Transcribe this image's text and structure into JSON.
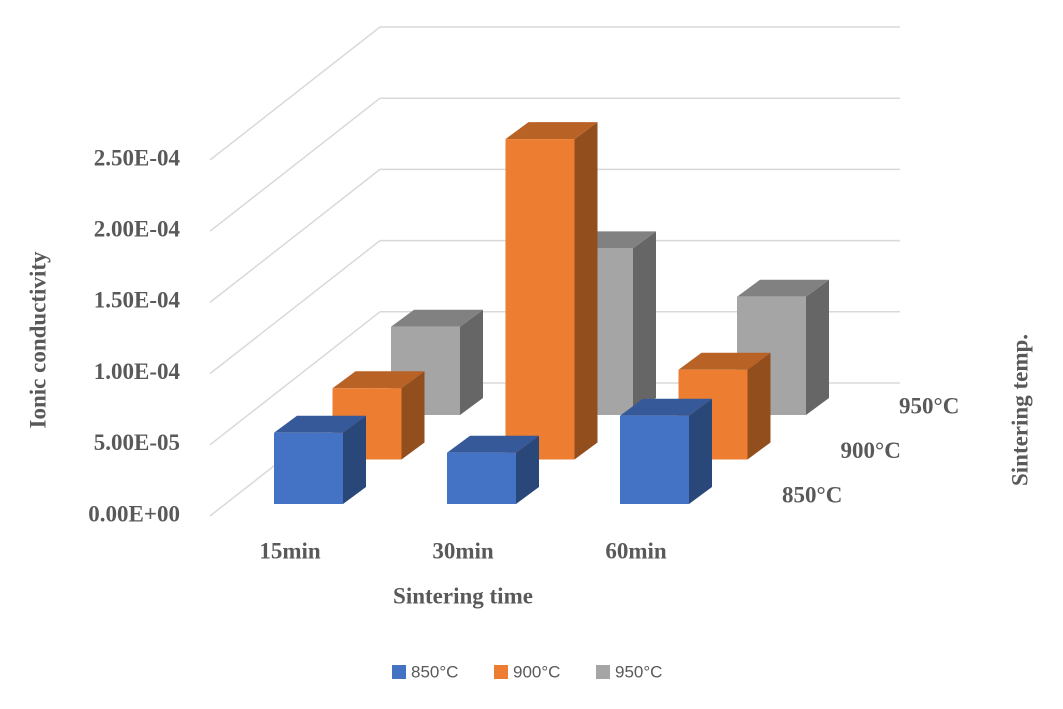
{
  "chart_data": {
    "type": "bar3d",
    "y_label": "Ionic conductivity",
    "x_label": "Sintering time",
    "z_label": "Sintering temp.",
    "categories": [
      "15min",
      "30min",
      "60min"
    ],
    "series": [
      {
        "name": "850°C",
        "color": "#4472c4",
        "values": [
          5e-05,
          3.6e-05,
          6.2e-05
        ]
      },
      {
        "name": "900°C",
        "color": "#ed7d31",
        "values": [
          5e-05,
          0.000225,
          6.3e-05
        ]
      },
      {
        "name": "950°C",
        "color": "#a5a5a5",
        "values": [
          6.2e-05,
          0.000117,
          8.3e-05
        ]
      }
    ],
    "ylim": [
      0,
      0.00025
    ],
    "yticks": [
      {
        "value": 0,
        "label": "0.00E+00"
      },
      {
        "value": 5e-05,
        "label": "5.00E-05"
      },
      {
        "value": 0.0001,
        "label": "1.00E-04"
      },
      {
        "value": 0.00015,
        "label": "1.50E-04"
      },
      {
        "value": 0.0002,
        "label": "2.00E-04"
      },
      {
        "value": 0.00025,
        "label": "2.50E-04"
      }
    ],
    "grid": true,
    "legend": "bottom"
  }
}
